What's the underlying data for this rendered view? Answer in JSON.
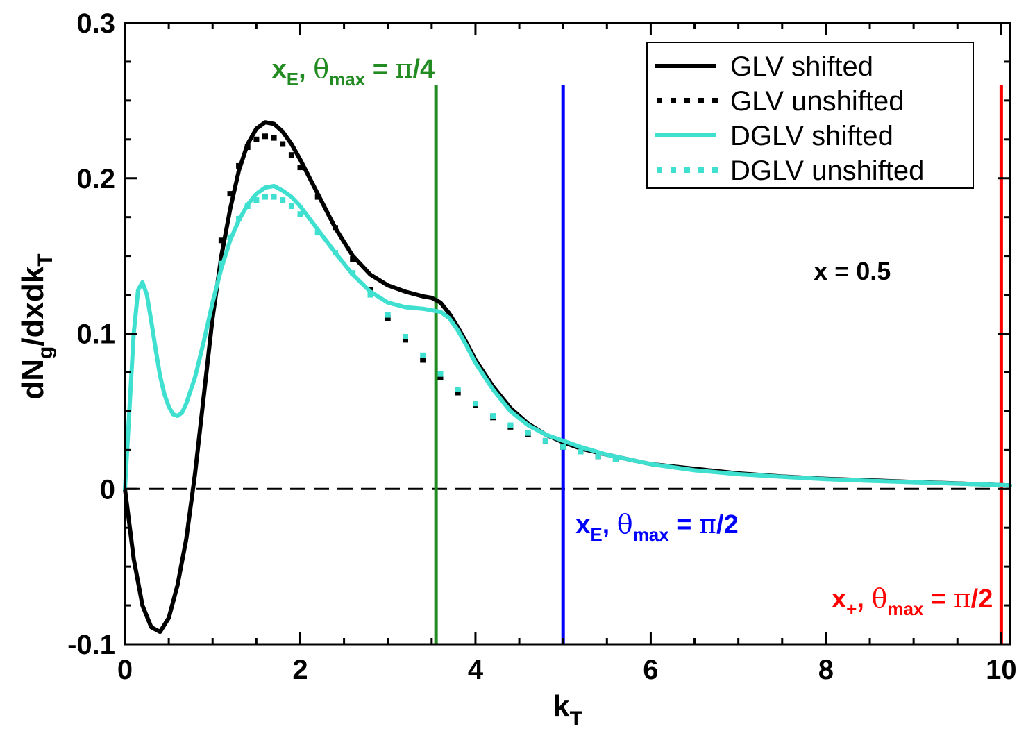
{
  "chart_data": {
    "type": "line",
    "title": "",
    "xlabel": {
      "main": "k",
      "sub": "T"
    },
    "ylabel": {
      "parts": [
        {
          "t": "dN",
          "s": ""
        },
        {
          "t": "g",
          "s": "sub"
        },
        {
          "t": "/dxdk",
          "s": ""
        },
        {
          "t": "T",
          "s": "sub"
        }
      ]
    },
    "xlim": [
      0,
      10.1
    ],
    "ylim": [
      -0.1,
      0.3
    ],
    "xticks": [
      0,
      2,
      4,
      6,
      8,
      10
    ],
    "xtick_labels": [
      "0",
      "2",
      "4",
      "6",
      "8",
      "10"
    ],
    "yticks": [
      -0.1,
      0,
      0.1,
      0.2,
      0.3
    ],
    "ytick_labels": [
      "-0.1",
      "0",
      "0.1",
      "0.2",
      "0.3"
    ],
    "zero_line": true,
    "legend_position": "top-right",
    "series": [
      {
        "name": "GLV shifted",
        "color": "#000000",
        "style": "solid",
        "x": [
          0,
          0.1,
          0.2,
          0.3,
          0.4,
          0.5,
          0.6,
          0.7,
          0.8,
          0.9,
          1.0,
          1.1,
          1.2,
          1.3,
          1.4,
          1.5,
          1.6,
          1.7,
          1.8,
          1.9,
          2.0,
          2.2,
          2.4,
          2.6,
          2.8,
          3.0,
          3.2,
          3.4,
          3.5,
          3.6,
          3.7,
          3.8,
          3.9,
          4.0,
          4.2,
          4.4,
          4.6,
          4.8,
          5.0,
          5.2,
          5.5,
          6.0,
          6.5,
          7.0,
          7.5,
          8.0,
          8.5,
          9.0,
          9.5,
          10.0,
          10.1
        ],
        "y": [
          0,
          -0.045,
          -0.075,
          -0.089,
          -0.092,
          -0.083,
          -0.062,
          -0.032,
          0.01,
          0.06,
          0.11,
          0.15,
          0.18,
          0.205,
          0.222,
          0.232,
          0.236,
          0.235,
          0.23,
          0.222,
          0.212,
          0.19,
          0.168,
          0.15,
          0.138,
          0.131,
          0.127,
          0.124,
          0.123,
          0.12,
          0.113,
          0.104,
          0.094,
          0.083,
          0.066,
          0.052,
          0.042,
          0.035,
          0.03,
          0.026,
          0.022,
          0.016,
          0.013,
          0.01,
          0.008,
          0.0065,
          0.0055,
          0.0045,
          0.0035,
          0.0025,
          0.0022
        ]
      },
      {
        "name": "GLV unshifted",
        "color": "#000000",
        "style": "dotted",
        "x": [
          1.1,
          1.2,
          1.3,
          1.4,
          1.5,
          1.6,
          1.7,
          1.8,
          1.9,
          2.0,
          2.2,
          2.4,
          2.6,
          2.8,
          3.0,
          3.2,
          3.4,
          3.6,
          3.8,
          4.0,
          4.2,
          4.4,
          4.6,
          4.8,
          5.0,
          5.2,
          5.4,
          5.6
        ],
        "y": [
          0.16,
          0.19,
          0.208,
          0.22,
          0.225,
          0.227,
          0.226,
          0.222,
          0.215,
          0.207,
          0.188,
          0.168,
          0.148,
          0.128,
          0.11,
          0.096,
          0.083,
          0.072,
          0.062,
          0.054,
          0.046,
          0.04,
          0.035,
          0.031,
          0.027,
          0.024,
          0.021,
          0.019
        ]
      },
      {
        "name": "DGLV shifted",
        "color": "#40e0d0",
        "style": "solid",
        "x": [
          0,
          0.05,
          0.1,
          0.15,
          0.2,
          0.25,
          0.3,
          0.35,
          0.4,
          0.45,
          0.5,
          0.55,
          0.6,
          0.65,
          0.7,
          0.8,
          0.9,
          1.0,
          1.1,
          1.2,
          1.3,
          1.4,
          1.5,
          1.6,
          1.7,
          1.8,
          1.9,
          2.0,
          2.2,
          2.4,
          2.6,
          2.8,
          3.0,
          3.2,
          3.4,
          3.5,
          3.6,
          3.7,
          3.8,
          3.9,
          4.0,
          4.2,
          4.4,
          4.6,
          4.8,
          5.0,
          5.2,
          5.5,
          6.0,
          6.5,
          7.0,
          7.5,
          8.0,
          8.5,
          9.0,
          9.5,
          10.0,
          10.1
        ],
        "y": [
          0,
          0.05,
          0.1,
          0.128,
          0.133,
          0.125,
          0.108,
          0.09,
          0.073,
          0.061,
          0.053,
          0.048,
          0.047,
          0.049,
          0.055,
          0.072,
          0.095,
          0.12,
          0.142,
          0.16,
          0.173,
          0.183,
          0.19,
          0.194,
          0.195,
          0.192,
          0.188,
          0.182,
          0.167,
          0.152,
          0.138,
          0.127,
          0.12,
          0.117,
          0.116,
          0.115,
          0.114,
          0.11,
          0.102,
          0.092,
          0.081,
          0.064,
          0.05,
          0.041,
          0.035,
          0.031,
          0.027,
          0.022,
          0.016,
          0.012,
          0.0095,
          0.0078,
          0.0063,
          0.0052,
          0.0043,
          0.0034,
          0.0025,
          0.0022
        ]
      },
      {
        "name": "DGLV unshifted",
        "color": "#40e0d0",
        "style": "dotted",
        "x": [
          1.1,
          1.2,
          1.3,
          1.4,
          1.5,
          1.6,
          1.7,
          1.8,
          1.9,
          2.0,
          2.2,
          2.4,
          2.6,
          2.8,
          3.0,
          3.2,
          3.4,
          3.6,
          3.8,
          4.0,
          4.2,
          4.4,
          4.6,
          4.8,
          5.0,
          5.2,
          5.4,
          5.6
        ],
        "y": [
          0.145,
          0.162,
          0.174,
          0.182,
          0.186,
          0.188,
          0.188,
          0.186,
          0.182,
          0.177,
          0.165,
          0.152,
          0.139,
          0.125,
          0.112,
          0.098,
          0.086,
          0.074,
          0.064,
          0.055,
          0.047,
          0.041,
          0.036,
          0.031,
          0.027,
          0.024,
          0.021,
          0.019
        ]
      }
    ],
    "vertical_lines": [
      {
        "x": 3.55,
        "y_top": 0.26,
        "color": "#228b22",
        "label": [
          {
            "t": "x",
            "s": ""
          },
          {
            "t": "E",
            "s": "sub"
          },
          {
            "t": ", ",
            "s": ""
          },
          {
            "t": "θ",
            "s": "greek"
          },
          {
            "t": "max",
            "s": "sub"
          },
          {
            "t": " = ",
            "s": ""
          },
          {
            "t": "π",
            "s": "greek"
          },
          {
            "t": "/4",
            "s": ""
          }
        ],
        "label_pos": "top-left"
      },
      {
        "x": 5.0,
        "y_top": 0.26,
        "color": "#0000ff",
        "label": [
          {
            "t": "x",
            "s": ""
          },
          {
            "t": "E",
            "s": "sub"
          },
          {
            "t": ", ",
            "s": ""
          },
          {
            "t": "θ",
            "s": "greek"
          },
          {
            "t": "max",
            "s": "sub"
          },
          {
            "t": " = ",
            "s": ""
          },
          {
            "t": "π",
            "s": "greek"
          },
          {
            "t": "/2",
            "s": ""
          }
        ],
        "label_pos": "middle-right"
      },
      {
        "x": 10.0,
        "y_top": 0.26,
        "color": "#ff0000",
        "label": [
          {
            "t": "x",
            "s": ""
          },
          {
            "t": "+",
            "s": "sub"
          },
          {
            "t": ", ",
            "s": ""
          },
          {
            "t": "θ",
            "s": "greek"
          },
          {
            "t": "max",
            "s": "sub"
          },
          {
            "t": " = ",
            "s": ""
          },
          {
            "t": "π",
            "s": "greek"
          },
          {
            "t": "/2",
            "s": ""
          }
        ],
        "label_pos": "bottom-left"
      }
    ],
    "annotations": [
      {
        "text": "x = 0.5",
        "x": 8.3,
        "y": 0.14
      }
    ]
  }
}
